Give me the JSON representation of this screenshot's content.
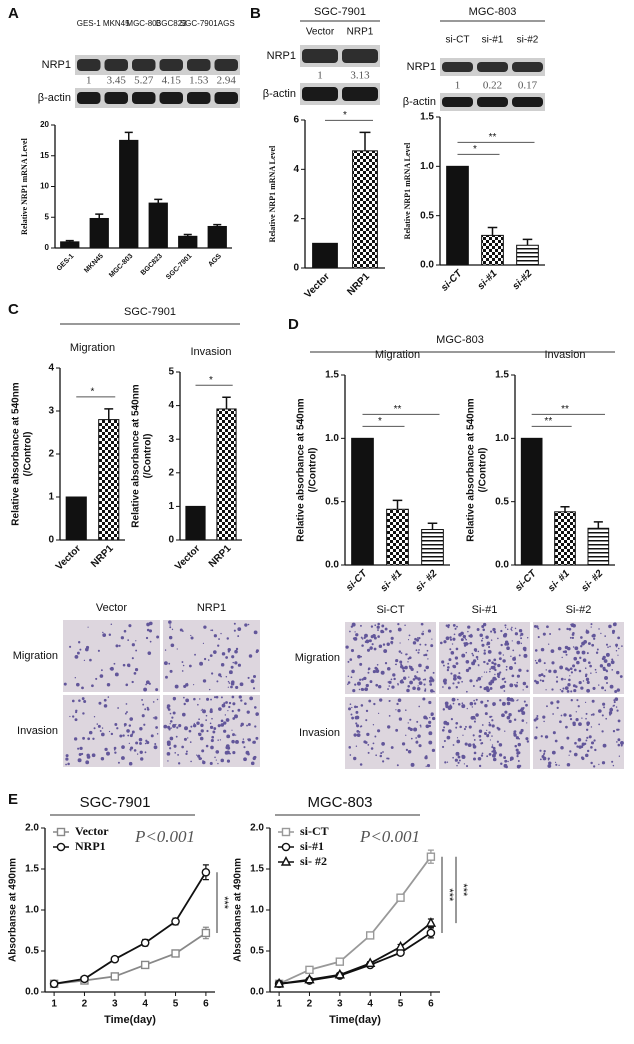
{
  "panel_labels": [
    "A",
    "B",
    "C",
    "D",
    "E"
  ],
  "panel_titles": [
    "SGC-7901",
    "MGC-803"
  ],
  "blots": [
    {
      "lanes": [
        "GES-1",
        "MKN45",
        "MGC-803",
        "BGC823",
        "SGC-7901",
        "AGS"
      ],
      "rows": [
        "NRP1",
        "β-actin"
      ],
      "quantities": [
        1,
        3.45,
        5.27,
        4.15,
        1.53,
        2.94
      ]
    },
    {
      "header": "SGC-7901",
      "lanes": [
        "Vector",
        "NRP1"
      ],
      "rows": [
        "NRP1",
        "β-actin"
      ],
      "quantities": [
        1,
        3.13
      ]
    },
    {
      "header": "MGC-803",
      "lanes": [
        "si-CT",
        "si-#1",
        "si-#2"
      ],
      "rows": [
        "NRP1",
        "β-actin"
      ],
      "quantities": [
        1,
        0.22,
        0.17
      ]
    }
  ],
  "micrographs": [
    {
      "columns": [
        "Vector",
        "NRP1"
      ],
      "rows": [
        "Migration",
        "Invasion"
      ]
    },
    {
      "columns": [
        "Si-CT",
        "Si-#1",
        "Si-#2"
      ],
      "rows": [
        "Migration",
        "Invasion"
      ]
    }
  ],
  "chart_data": [
    {
      "type": "bar",
      "ylabel": [
        "Relative NRP1 mRNA Level"
      ],
      "categories": [
        "GES-1",
        "MKN45",
        "MGC-803",
        "BGC823",
        "SGC-7901",
        "AGS"
      ],
      "values": [
        1,
        4.8,
        17.5,
        7.3,
        1.9,
        3.5
      ],
      "errors": [
        0.2,
        0.7,
        1.3,
        0.6,
        0.3,
        0.3
      ],
      "fills": [
        "solid",
        "solid",
        "solid",
        "solid",
        "solid",
        "solid"
      ],
      "ylim": [
        0,
        20
      ],
      "yticks": [
        0,
        5,
        10,
        15,
        20
      ],
      "annotations": []
    },
    {
      "type": "bar",
      "ylabel": [
        "Relative NRP1 mRNA Level"
      ],
      "categories": [
        "Vector",
        "NRP1"
      ],
      "values": [
        1,
        4.75
      ],
      "errors": [
        null,
        0.75
      ],
      "fills": [
        "solid",
        "checker"
      ],
      "ylim": [
        0,
        6
      ],
      "yticks": [
        0,
        2,
        4,
        6
      ],
      "annotations": [
        "*"
      ]
    },
    {
      "type": "bar",
      "ylabel": [
        "Relative NRP1 mRNA Level"
      ],
      "categories": [
        "si-CT",
        "si-#1",
        "si-#2"
      ],
      "values": [
        1,
        0.3,
        0.2
      ],
      "errors": [
        null,
        0.08,
        0.06
      ],
      "fills": [
        "solid",
        "checker",
        "stripes"
      ],
      "ylim": [
        0,
        1.5
      ],
      "yticks": [
        {
          "value": 0,
          "label": "0.0"
        },
        0.5,
        {
          "value": 1,
          "label": "1.0"
        },
        1.5
      ],
      "annotations": [
        "*",
        "**"
      ]
    },
    {
      "type": "bar",
      "title": "Migration",
      "ylabel": [
        "Relative absorbance at 540nm",
        "(/Control)"
      ],
      "categories": [
        "Vector",
        "NRP1"
      ],
      "values": [
        1,
        2.8
      ],
      "errors": [
        null,
        0.25
      ],
      "fills": [
        "solid",
        "checker"
      ],
      "ylim": [
        0,
        4
      ],
      "yticks": [
        0,
        1,
        2,
        3,
        4
      ],
      "annotations": [
        "*"
      ]
    },
    {
      "type": "bar",
      "title": "Invasion",
      "ylabel": [
        "Relative absorbance at 540nm",
        "(/Control)"
      ],
      "categories": [
        "Vector",
        "NRP1"
      ],
      "values": [
        1,
        3.9
      ],
      "errors": [
        null,
        0.35
      ],
      "fills": [
        "solid",
        "checker"
      ],
      "ylim": [
        0,
        5
      ],
      "yticks": [
        0,
        1,
        2,
        3,
        4,
        5
      ],
      "annotations": [
        "*"
      ]
    },
    {
      "type": "bar",
      "title": "Migration",
      "ylabel": [
        "Relative absorbance at 540nm",
        "(/Control)"
      ],
      "categories": [
        "si-CT",
        "si- #1",
        "si- #2"
      ],
      "values": [
        1,
        0.44,
        0.28
      ],
      "errors": [
        null,
        0.07,
        0.05
      ],
      "fills": [
        "solid",
        "checker",
        "stripes"
      ],
      "ylim": [
        0,
        1.5
      ],
      "yticks": [
        {
          "value": 0,
          "label": "0.0"
        },
        0.5,
        {
          "value": 1,
          "label": "1.0"
        },
        1.5
      ],
      "annotations": [
        "*",
        "**"
      ]
    },
    {
      "type": "bar",
      "title": "Invasion",
      "ylabel": [
        "Relative absorbance at 540nm",
        "(/Control)"
      ],
      "categories": [
        "si-CT",
        "si- #1",
        "si- #2"
      ],
      "values": [
        1,
        0.42,
        0.29
      ],
      "errors": [
        null,
        0.04,
        0.05
      ],
      "fills": [
        "solid",
        "checker",
        "stripes"
      ],
      "ylim": [
        0,
        1.5
      ],
      "yticks": [
        {
          "value": 0,
          "label": "0.0"
        },
        0.5,
        {
          "value": 1,
          "label": "1.0"
        },
        1.5
      ],
      "annotations": [
        "**",
        "**"
      ]
    },
    {
      "type": "line",
      "title": "SGC-7901",
      "ylabel": [
        "Absorbanse at 490nm"
      ],
      "xlabel": "Time(day)",
      "legend": "upper left",
      "x": [
        1,
        2,
        3,
        4,
        5,
        6
      ],
      "xlim": [
        0.7,
        6.3
      ],
      "xticks": [
        1,
        2,
        3,
        4,
        5,
        6
      ],
      "ylim": [
        0,
        2
      ],
      "yticks": [
        {
          "value": 0,
          "label": "0.0"
        },
        0.5,
        {
          "value": 1,
          "label": "1.0"
        },
        1.5,
        {
          "value": 2,
          "label": "2.0"
        }
      ],
      "series": [
        {
          "name": "Vector",
          "color": "#888888",
          "marker": "square",
          "values": [
            0.1,
            0.14,
            0.19,
            0.33,
            0.47,
            0.72
          ],
          "errors": [
            0.02,
            0.02,
            0.03,
            0.03,
            0.03,
            0.07
          ]
        },
        {
          "name": "NRP1",
          "color": "#111111",
          "marker": "circle",
          "values": [
            0.1,
            0.16,
            0.4,
            0.6,
            0.86,
            1.46
          ],
          "errors": [
            0.02,
            0.03,
            0.03,
            0.04,
            0.04,
            0.09
          ]
        }
      ],
      "annotations": [
        "P<0.001",
        "***"
      ]
    },
    {
      "type": "line",
      "title": "MGC-803",
      "ylabel": [
        "Absorbanse at 490nm"
      ],
      "xlabel": "Time(day)",
      "legend": "upper left",
      "x": [
        1,
        2,
        3,
        4,
        5,
        6
      ],
      "xlim": [
        0.7,
        6.3
      ],
      "xticks": [
        1,
        2,
        3,
        4,
        5,
        6
      ],
      "ylim": [
        0,
        2
      ],
      "yticks": [
        {
          "value": 0,
          "label": "0.0"
        },
        0.5,
        {
          "value": 1,
          "label": "1.0"
        },
        1.5,
        {
          "value": 2,
          "label": "2.0"
        }
      ],
      "series": [
        {
          "name": "si-CT",
          "color": "#999999",
          "marker": "square",
          "values": [
            0.1,
            0.27,
            0.37,
            0.69,
            1.15,
            1.65
          ],
          "errors": [
            0.02,
            0.03,
            0.03,
            0.03,
            0.03,
            0.08
          ]
        },
        {
          "name": "si-#1",
          "color": "#111111",
          "marker": "circle",
          "values": [
            0.1,
            0.14,
            0.2,
            0.33,
            0.48,
            0.72
          ],
          "errors": [
            0.02,
            0.02,
            0.02,
            0.02,
            0.03,
            0.06
          ]
        },
        {
          "name": "si- #2",
          "color": "#111111",
          "marker": "triangle",
          "values": [
            0.1,
            0.15,
            0.21,
            0.35,
            0.55,
            0.84
          ],
          "errors": [
            0.02,
            0.02,
            0.02,
            0.02,
            0.03,
            0.05
          ]
        }
      ],
      "annotations": [
        "P<0.001",
        "***",
        "***"
      ]
    }
  ]
}
